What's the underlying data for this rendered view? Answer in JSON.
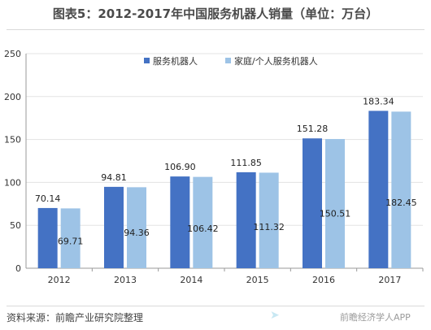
{
  "title": "图表5：2012-2017年中国服务机器人销量（单位：万台）",
  "source": "资料来源：前瞻产业研究院整理",
  "watermark": "前瞻经济学人APP",
  "colors": {
    "service": "#4472C4",
    "home": "#9DC3E6",
    "grid": "#e3e3e3",
    "axis": "#999999"
  },
  "chart_data": {
    "type": "bar",
    "categories": [
      "2012",
      "2013",
      "2014",
      "2015",
      "2016",
      "2017"
    ],
    "series": [
      {
        "name": "服务机器人",
        "values": [
          70.14,
          94.81,
          106.9,
          111.85,
          151.28,
          183.34
        ],
        "labels": [
          "70.14",
          "94.81",
          "106.90",
          "111.85",
          "151.28",
          "183.34"
        ]
      },
      {
        "name": "家庭/个人服务机器人",
        "values": [
          69.71,
          94.36,
          106.42,
          111.32,
          150.51,
          182.45
        ],
        "labels": [
          "69.71",
          "94.36",
          "106.42",
          "111.32",
          "150.51",
          "182.45"
        ]
      }
    ],
    "yticks": [
      "0",
      "50",
      "100",
      "150",
      "200",
      "250"
    ],
    "ylim": [
      0,
      250
    ],
    "grid": true,
    "legend": "top"
  }
}
